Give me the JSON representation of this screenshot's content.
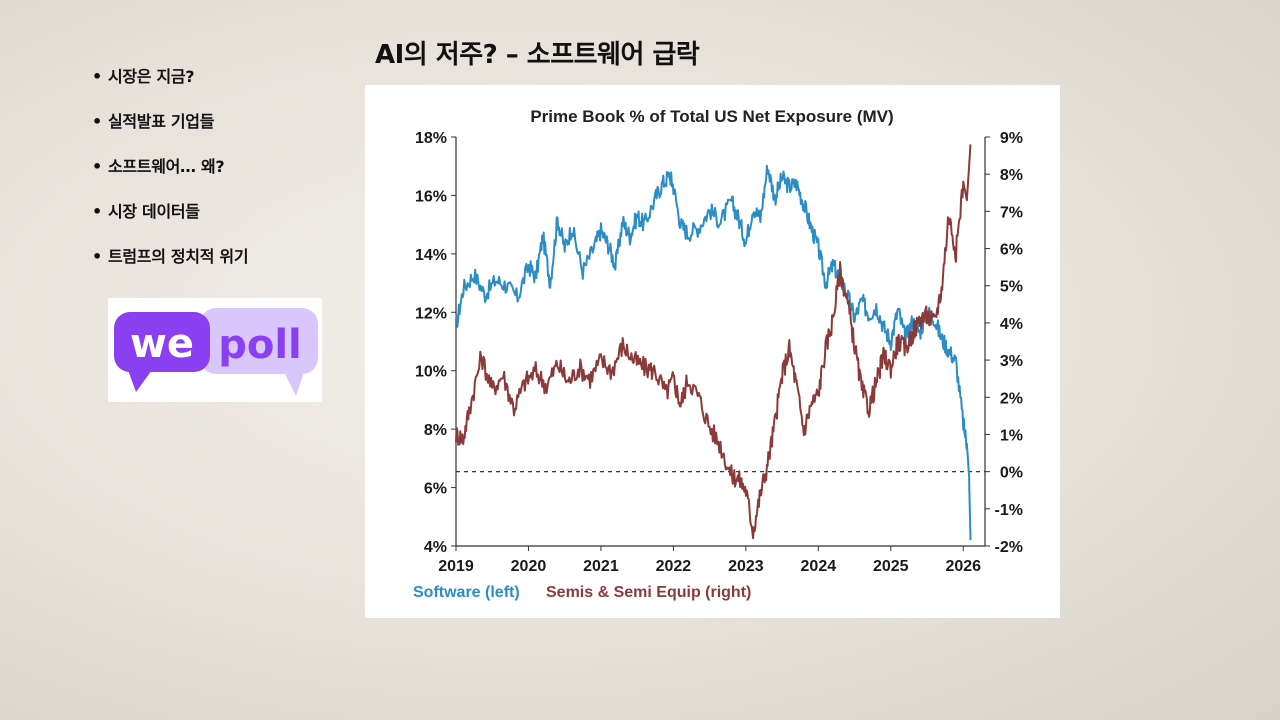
{
  "slide": {
    "title": "AI의 저주? – 소프트웨어 급락",
    "bullets": [
      "시장은 지금?",
      "실적발표 기업들",
      "소프트웨어… 왜?",
      "시장 데이터들",
      "트럼프의 정치적 위기"
    ],
    "bullet_marker": "•"
  },
  "logo": {
    "left_word": "we",
    "right_word": "poll",
    "colors": {
      "primary": "#8a3ff0",
      "light": "#d9c6fb",
      "bubble_dark": "#6d26d6"
    }
  },
  "chart_data": {
    "type": "line",
    "title": "Prime Book % of Total US Net Exposure (MV)",
    "x_ticks": [
      "2019",
      "2020",
      "2021",
      "2022",
      "2023",
      "2024",
      "2025",
      "2026"
    ],
    "y_left_ticks": [
      "4%",
      "6%",
      "8%",
      "10%",
      "12%",
      "14%",
      "16%",
      "18%"
    ],
    "y_right_ticks": [
      "-2%",
      "-1%",
      "0%",
      "1%",
      "2%",
      "3%",
      "4%",
      "5%",
      "6%",
      "7%",
      "8%",
      "9%"
    ],
    "y_left_range": [
      4,
      18
    ],
    "y_right_range": [
      -2,
      9
    ],
    "x_range": [
      2019,
      2026.3
    ],
    "reference_line": {
      "axis": "right",
      "value": 0,
      "style": "dashed"
    },
    "series": [
      {
        "name": "Software (left)",
        "axis": "left",
        "color": "#2c8cc4",
        "x": [
          2019.0,
          2019.1,
          2019.25,
          2019.4,
          2019.55,
          2019.7,
          2019.85,
          2020.0,
          2020.1,
          2020.2,
          2020.3,
          2020.4,
          2020.5,
          2020.6,
          2020.75,
          2020.9,
          2021.0,
          2021.1,
          2021.2,
          2021.3,
          2021.4,
          2021.5,
          2021.6,
          2021.75,
          2021.85,
          2021.95,
          2022.0,
          2022.1,
          2022.2,
          2022.35,
          2022.5,
          2022.65,
          2022.8,
          2022.9,
          2023.0,
          2023.1,
          2023.2,
          2023.3,
          2023.4,
          2023.5,
          2023.6,
          2023.7,
          2023.8,
          2023.9,
          2024.0,
          2024.1,
          2024.2,
          2024.3,
          2024.4,
          2024.5,
          2024.6,
          2024.7,
          2024.8,
          2024.9,
          2025.0,
          2025.1,
          2025.2,
          2025.3,
          2025.4,
          2025.5,
          2025.6,
          2025.7,
          2025.8,
          2025.9,
          2026.0,
          2026.05,
          2026.08,
          2026.1
        ],
        "values": [
          11.5,
          12.8,
          13.3,
          12.6,
          13.1,
          12.9,
          12.5,
          13.6,
          13.2,
          14.6,
          13.0,
          15.2,
          14.2,
          14.9,
          13.4,
          14.2,
          14.8,
          14.3,
          13.6,
          15.1,
          14.6,
          15.3,
          15.0,
          15.9,
          16.4,
          16.7,
          16.3,
          15.0,
          14.7,
          14.9,
          15.5,
          15.1,
          15.8,
          15.2,
          14.4,
          15.6,
          15.2,
          17.0,
          15.9,
          16.6,
          16.3,
          16.4,
          15.7,
          14.9,
          14.2,
          13.0,
          13.6,
          13.2,
          12.6,
          11.8,
          12.4,
          11.9,
          12.2,
          11.5,
          11.0,
          12.1,
          11.1,
          11.7,
          11.3,
          12.0,
          11.8,
          11.1,
          10.7,
          10.3,
          8.2,
          7.5,
          6.4,
          4.2
        ]
      },
      {
        "name": "Semis & Semi Equip (right)",
        "axis": "right",
        "color": "#8b3a3a",
        "x": [
          2019.0,
          2019.1,
          2019.2,
          2019.35,
          2019.5,
          2019.65,
          2019.8,
          2019.95,
          2020.1,
          2020.25,
          2020.4,
          2020.55,
          2020.7,
          2020.85,
          2021.0,
          2021.15,
          2021.3,
          2021.45,
          2021.6,
          2021.75,
          2021.9,
          2022.0,
          2022.1,
          2022.2,
          2022.35,
          2022.5,
          2022.65,
          2022.8,
          2022.9,
          2023.0,
          2023.1,
          2023.2,
          2023.3,
          2023.4,
          2023.5,
          2023.6,
          2023.7,
          2023.8,
          2023.9,
          2024.0,
          2024.1,
          2024.2,
          2024.3,
          2024.4,
          2024.5,
          2024.6,
          2024.7,
          2024.8,
          2024.9,
          2025.0,
          2025.1,
          2025.2,
          2025.3,
          2025.4,
          2025.5,
          2025.6,
          2025.7,
          2025.8,
          2025.9,
          2026.0,
          2026.05,
          2026.1
        ],
        "values": [
          1.0,
          0.9,
          1.8,
          3.1,
          2.2,
          2.6,
          1.7,
          2.4,
          2.7,
          2.3,
          2.9,
          2.4,
          2.8,
          2.5,
          3.0,
          2.7,
          3.4,
          3.0,
          2.8,
          2.7,
          2.1,
          2.5,
          1.8,
          2.5,
          2.0,
          1.2,
          0.7,
          -0.1,
          -0.2,
          -0.5,
          -1.6,
          -0.6,
          0.2,
          1.3,
          2.6,
          3.3,
          2.3,
          1.1,
          1.8,
          2.1,
          3.3,
          4.1,
          5.4,
          4.6,
          3.4,
          2.2,
          1.7,
          2.4,
          3.1,
          2.8,
          3.5,
          3.3,
          3.7,
          4.1,
          4.2,
          4.0,
          4.9,
          6.9,
          5.9,
          7.8,
          7.3,
          8.8
        ]
      }
    ],
    "legend_position": "bottom-left",
    "grid": false
  }
}
